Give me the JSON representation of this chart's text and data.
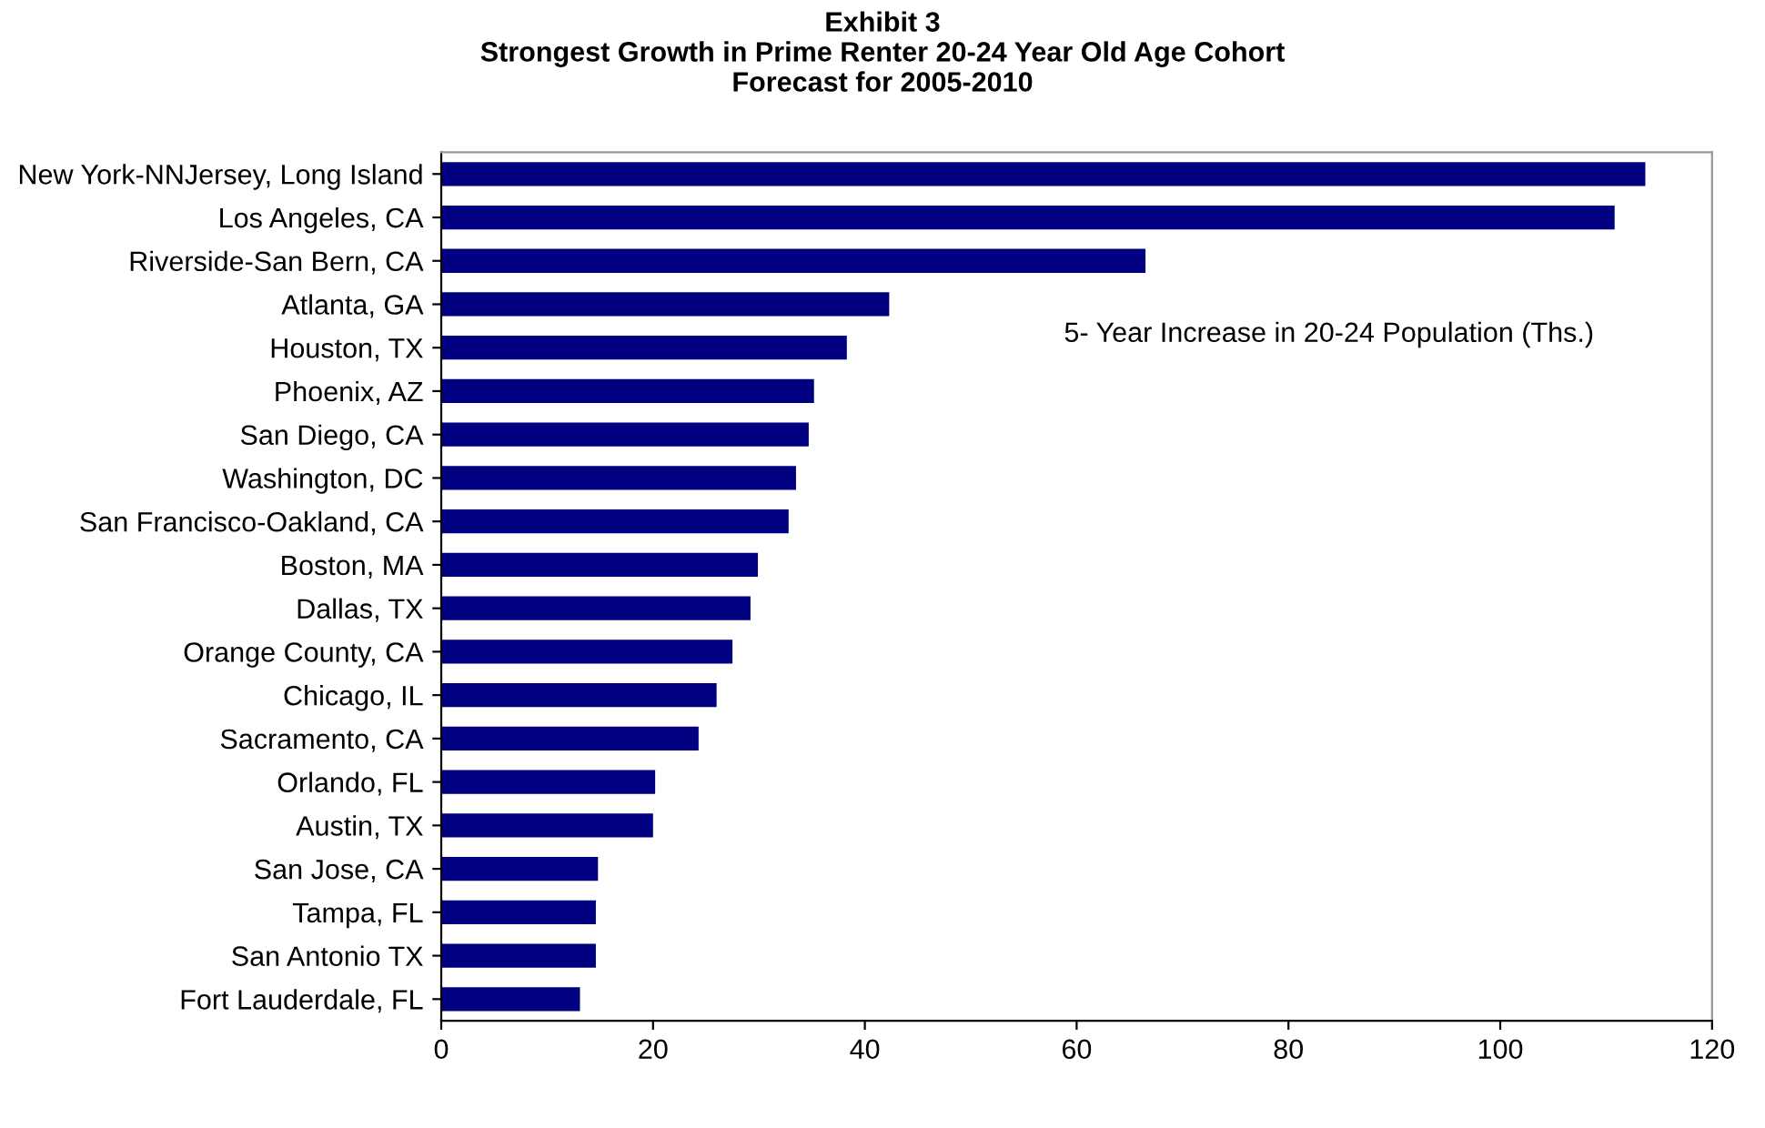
{
  "chart_data": {
    "type": "bar",
    "orientation": "horizontal",
    "title": "Exhibit 3\nStrongest Growth in Prime Renter 20-24 Year Old Age Cohort\nForecast for 2005-2010",
    "categories": [
      "New York-NNJersey, Long Island",
      "Los Angeles, CA",
      "Riverside-San Bern, CA",
      "Atlanta, GA",
      "Houston, TX",
      "Phoenix, AZ",
      "San Diego, CA",
      "Washington, DC",
      "San Francisco-Oakland, CA",
      "Boston, MA",
      "Dallas, TX",
      "Orange County, CA",
      "Chicago, IL",
      "Sacramento, CA",
      "Orlando, FL",
      "Austin, TX",
      "San Jose, CA",
      "Tampa, FL",
      "San Antonio TX",
      "Fort Lauderdale, FL"
    ],
    "values": [
      113.7,
      110.8,
      66.5,
      42.3,
      38.3,
      35.2,
      34.7,
      33.5,
      32.8,
      29.9,
      29.2,
      27.5,
      26.0,
      24.3,
      20.2,
      20.0,
      14.8,
      14.6,
      14.6,
      13.1
    ],
    "color": "#000080",
    "xlim": [
      0,
      120
    ],
    "xticks": [
      0,
      20,
      40,
      60,
      80,
      100,
      120
    ],
    "grid": false,
    "legend": false,
    "annotations": [
      "5- Year Increase in 20-24 Population (Ths.)"
    ]
  }
}
